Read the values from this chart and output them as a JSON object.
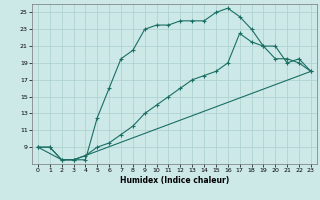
{
  "xlabel": "Humidex (Indice chaleur)",
  "background_color": "#cce9e8",
  "grid_color": "#aacfce",
  "line_color": "#1a6e64",
  "xlim": [
    -0.5,
    23.5
  ],
  "ylim": [
    7,
    26
  ],
  "yticks": [
    9,
    11,
    13,
    15,
    17,
    19,
    21,
    23,
    25
  ],
  "xticks": [
    0,
    1,
    2,
    3,
    4,
    5,
    6,
    7,
    8,
    9,
    10,
    11,
    12,
    13,
    14,
    15,
    16,
    17,
    18,
    19,
    20,
    21,
    22,
    23
  ],
  "line1_x": [
    0,
    1,
    2,
    3,
    4,
    5,
    6,
    7,
    8,
    9,
    10,
    11,
    12,
    13,
    14,
    15,
    16,
    17,
    18,
    19,
    20,
    21,
    22,
    23
  ],
  "line1_y": [
    9,
    9,
    7.5,
    7.5,
    7.5,
    12.5,
    16,
    19.5,
    20.5,
    23,
    23.5,
    23.5,
    24,
    24,
    24,
    25,
    25.5,
    24.5,
    23,
    21,
    19.5,
    19.5,
    19,
    18
  ],
  "line2_x": [
    0,
    1,
    2,
    3,
    4,
    5,
    6,
    7,
    8,
    9,
    10,
    11,
    12,
    13,
    14,
    15,
    16,
    17,
    18,
    19,
    20,
    21,
    22,
    23
  ],
  "line2_y": [
    9,
    9,
    7.5,
    7.5,
    8,
    9,
    9.5,
    10.5,
    11.5,
    13,
    14,
    15,
    16,
    17,
    17.5,
    18,
    19,
    22.5,
    21.5,
    21,
    21,
    19,
    19.5,
    18
  ],
  "line3_x": [
    0,
    2,
    3,
    4,
    23
  ],
  "line3_y": [
    9,
    7.5,
    7.5,
    8,
    18
  ]
}
